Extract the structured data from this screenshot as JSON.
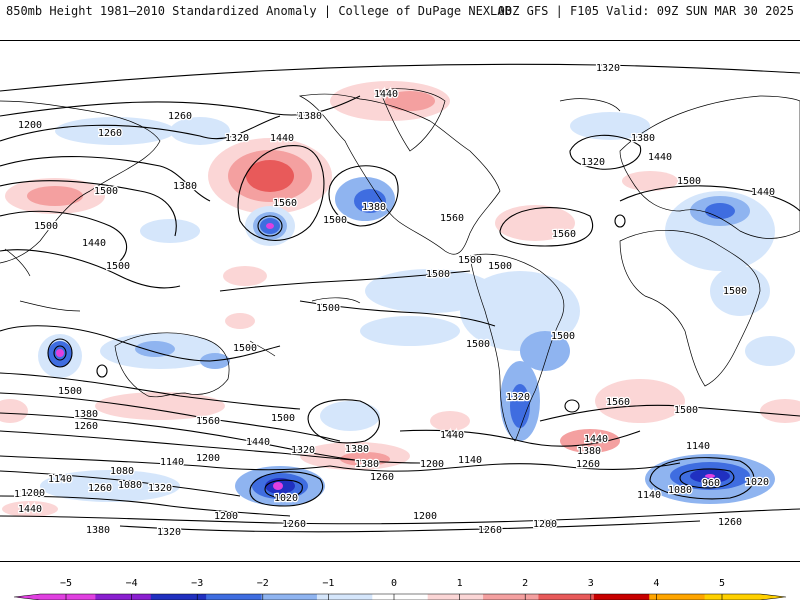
{
  "header": {
    "left": "850mb Height 1981–2010 Standardized Anomaly | College of DuPage NEXLAB",
    "right": "00Z GFS | F105 Valid: 09Z SUN MAR 30 2025"
  },
  "colorbar": {
    "ticks": [
      "−5",
      "−4",
      "−3",
      "−2",
      "−1",
      "0",
      "1",
      "2",
      "3",
      "4",
      "5"
    ],
    "colors": [
      "#e040e0",
      "#8a1fd0",
      "#2030c0",
      "#3f6de0",
      "#8fb4f0",
      "#d5e6fb",
      "#ffffff",
      "#fbd6d6",
      "#f4a0a0",
      "#e85a5a",
      "#c80000",
      "#ffa500",
      "#ffd000"
    ]
  },
  "contour_labels": [
    {
      "text": "1320"
    },
    {
      "text": "1440"
    },
    {
      "text": "1380"
    },
    {
      "text": "1200"
    },
    {
      "text": "1260"
    },
    {
      "text": "1260"
    },
    {
      "text": "1320"
    },
    {
      "text": "1440"
    },
    {
      "text": "1380"
    },
    {
      "text": "1560"
    },
    {
      "text": "1500"
    },
    {
      "text": "1380"
    },
    {
      "text": "1500"
    },
    {
      "text": "1440"
    },
    {
      "text": "1500"
    },
    {
      "text": "1560"
    },
    {
      "text": "1500"
    },
    {
      "text": "1380"
    },
    {
      "text": "1320"
    },
    {
      "text": "1380"
    },
    {
      "text": "1440"
    },
    {
      "text": "1500"
    },
    {
      "text": "1440"
    },
    {
      "text": "1560"
    },
    {
      "text": "1500"
    },
    {
      "text": "1500"
    },
    {
      "text": "1500"
    },
    {
      "text": "1500"
    },
    {
      "text": "1500"
    },
    {
      "text": "1500"
    },
    {
      "text": "1500"
    },
    {
      "text": "1500"
    },
    {
      "text": "1500"
    },
    {
      "text": "1380"
    },
    {
      "text": "1260"
    },
    {
      "text": "1560"
    },
    {
      "text": "1500"
    },
    {
      "text": "1440"
    },
    {
      "text": "1320"
    },
    {
      "text": "1380"
    },
    {
      "text": "1380"
    },
    {
      "text": "1200"
    },
    {
      "text": "1260"
    },
    {
      "text": "1440"
    },
    {
      "text": "1320"
    },
    {
      "text": "1560"
    },
    {
      "text": "1500"
    },
    {
      "text": "1440"
    },
    {
      "text": "1380"
    },
    {
      "text": "1260"
    },
    {
      "text": "1140"
    },
    {
      "text": "1200"
    },
    {
      "text": "1140"
    },
    {
      "text": "1080"
    },
    {
      "text": "1200"
    },
    {
      "text": "1140"
    },
    {
      "text": "1260"
    },
    {
      "text": "1080"
    },
    {
      "text": "1320"
    },
    {
      "text": "1020"
    },
    {
      "text": "1140"
    },
    {
      "text": "1080"
    },
    {
      "text": "960"
    },
    {
      "text": "1020"
    },
    {
      "text": "1440"
    },
    {
      "text": "1380"
    },
    {
      "text": "1320"
    },
    {
      "text": "1200"
    },
    {
      "text": "1260"
    },
    {
      "text": "1200"
    },
    {
      "text": "1260"
    },
    {
      "text": "1200"
    },
    {
      "text": "1260"
    },
    {
      "text": "1200"
    },
    {
      "text": "1140"
    }
  ]
}
